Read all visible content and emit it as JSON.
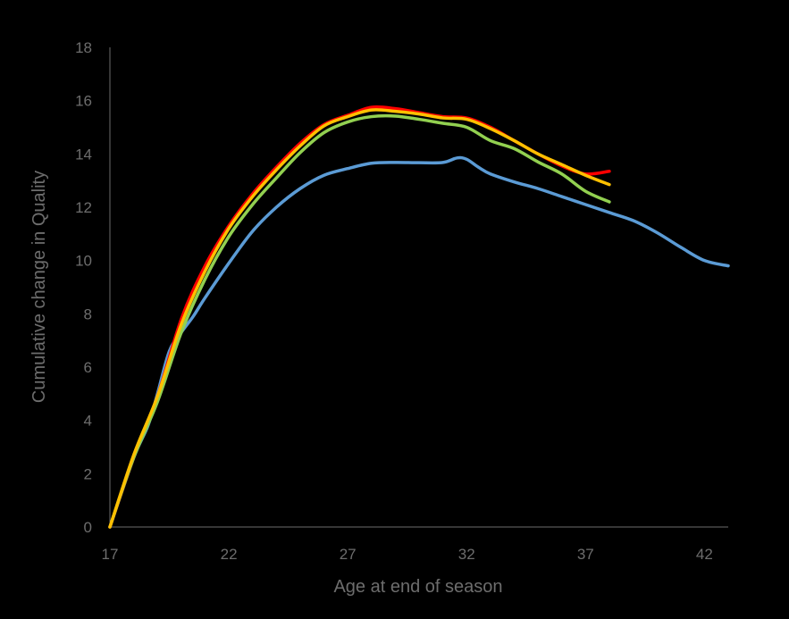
{
  "chart_data": {
    "type": "line",
    "title": "",
    "xlabel": "Age at end of season",
    "ylabel": "Cumulative change in Quality",
    "xlim": [
      17,
      43
    ],
    "ylim": [
      0,
      18
    ],
    "x_ticks": [
      17,
      22,
      27,
      32,
      37,
      42
    ],
    "y_ticks": [
      0,
      2,
      4,
      6,
      8,
      10,
      12,
      14,
      16,
      18
    ],
    "grid": false,
    "legend": "none",
    "series": [
      {
        "color": "#5b9bd5",
        "points": [
          [
            17,
            0
          ],
          [
            18,
            2.6
          ],
          [
            18.6,
            3.8
          ],
          [
            19,
            5.0
          ],
          [
            19.5,
            6.6
          ],
          [
            20,
            7.3
          ],
          [
            20.5,
            7.9
          ],
          [
            21,
            8.6
          ],
          [
            22,
            9.9
          ],
          [
            23,
            11.1
          ],
          [
            24,
            12.0
          ],
          [
            25,
            12.7
          ],
          [
            26,
            13.2
          ],
          [
            27,
            13.45
          ],
          [
            28,
            13.65
          ],
          [
            29,
            13.68
          ],
          [
            30,
            13.67
          ],
          [
            31,
            13.68
          ],
          [
            31.6,
            13.85
          ],
          [
            32,
            13.8
          ],
          [
            32.5,
            13.5
          ],
          [
            33,
            13.25
          ],
          [
            34,
            12.95
          ],
          [
            35,
            12.7
          ],
          [
            36,
            12.4
          ],
          [
            37,
            12.1
          ],
          [
            38,
            11.8
          ],
          [
            39,
            11.5
          ],
          [
            40,
            11.05
          ],
          [
            41,
            10.5
          ],
          [
            42,
            10.0
          ],
          [
            43,
            9.8
          ]
        ]
      },
      {
        "color": "#ff0000",
        "points": [
          [
            17,
            0
          ],
          [
            18,
            2.6
          ],
          [
            19,
            4.9
          ],
          [
            20,
            7.8
          ],
          [
            21,
            9.8
          ],
          [
            22,
            11.3
          ],
          [
            23,
            12.5
          ],
          [
            24,
            13.5
          ],
          [
            25,
            14.4
          ],
          [
            26,
            15.1
          ],
          [
            27,
            15.45
          ],
          [
            28,
            15.75
          ],
          [
            29,
            15.7
          ],
          [
            30,
            15.55
          ],
          [
            31,
            15.4
          ],
          [
            32,
            15.35
          ],
          [
            33,
            15.0
          ],
          [
            34,
            14.5
          ],
          [
            35,
            14.0
          ],
          [
            36,
            13.55
          ],
          [
            37,
            13.25
          ],
          [
            38,
            13.35
          ]
        ]
      },
      {
        "color": "#92d050",
        "points": [
          [
            17,
            0
          ],
          [
            18,
            2.6
          ],
          [
            19,
            4.7
          ],
          [
            20,
            7.3
          ],
          [
            21,
            9.3
          ],
          [
            22,
            10.9
          ],
          [
            23,
            12.1
          ],
          [
            24,
            13.1
          ],
          [
            25,
            14.05
          ],
          [
            26,
            14.8
          ],
          [
            27,
            15.2
          ],
          [
            28,
            15.4
          ],
          [
            29,
            15.42
          ],
          [
            30,
            15.3
          ],
          [
            31,
            15.15
          ],
          [
            32,
            15.0
          ],
          [
            33,
            14.5
          ],
          [
            34,
            14.2
          ],
          [
            35,
            13.7
          ],
          [
            36,
            13.25
          ],
          [
            37,
            12.6
          ],
          [
            38,
            12.2
          ]
        ]
      },
      {
        "color": "#ffc000",
        "points": [
          [
            17,
            0
          ],
          [
            18,
            2.7
          ],
          [
            19,
            4.9
          ],
          [
            20,
            7.6
          ],
          [
            21,
            9.6
          ],
          [
            22,
            11.2
          ],
          [
            23,
            12.4
          ],
          [
            24,
            13.4
          ],
          [
            25,
            14.3
          ],
          [
            26,
            15.05
          ],
          [
            27,
            15.4
          ],
          [
            28,
            15.65
          ],
          [
            29,
            15.6
          ],
          [
            30,
            15.5
          ],
          [
            31,
            15.35
          ],
          [
            32,
            15.3
          ],
          [
            33,
            14.95
          ],
          [
            34,
            14.5
          ],
          [
            35,
            14.0
          ],
          [
            36,
            13.6
          ],
          [
            37,
            13.2
          ],
          [
            38,
            12.85
          ]
        ]
      }
    ]
  }
}
